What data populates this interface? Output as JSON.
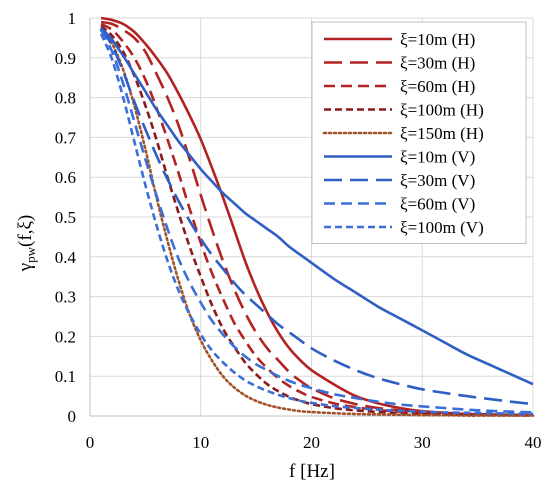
{
  "chart_data": {
    "type": "line",
    "xlabel": "f [Hz]",
    "ylabel": "γpw(f,ξ)",
    "ylabel_main": "γ",
    "ylabel_sub": "pw",
    "ylabel_rest": "(f,ξ)",
    "xlim": [
      0,
      40
    ],
    "ylim": [
      0,
      1
    ],
    "xticks": [
      0,
      10,
      20,
      30,
      40
    ],
    "yticks": [
      0,
      0.1,
      0.2,
      0.3,
      0.4,
      0.5,
      0.6,
      0.7,
      0.8,
      0.9,
      1
    ],
    "xtick_labels": [
      "0",
      "10",
      "20",
      "30",
      "40"
    ],
    "ytick_labels": [
      "0",
      "0.1",
      "0.2",
      "0.3",
      "0.4",
      "0.5",
      "0.6",
      "0.7",
      "0.8",
      "0.9",
      "1"
    ],
    "grid": "both",
    "legend_position": "top-right",
    "x": [
      1,
      2,
      3,
      4,
      5,
      6,
      7,
      8,
      9,
      10,
      11,
      12,
      13,
      14,
      15,
      16,
      17,
      18,
      19,
      20,
      22,
      24,
      26,
      28,
      30,
      32,
      34,
      36,
      38,
      40
    ],
    "series": [
      {
        "name": "ξ=10m (H)",
        "color": "#B22222",
        "dash": "solid",
        "values": [
          1.0,
          0.995,
          0.985,
          0.965,
          0.935,
          0.9,
          0.86,
          0.81,
          0.755,
          0.695,
          0.625,
          0.55,
          0.47,
          0.39,
          0.32,
          0.26,
          0.21,
          0.17,
          0.14,
          0.115,
          0.08,
          0.05,
          0.032,
          0.02,
          0.012,
          0.008,
          0.005,
          0.004,
          0.003,
          0.002
        ]
      },
      {
        "name": "ξ=30m (H)",
        "color": "#B22222",
        "dash": "long",
        "values": [
          0.99,
          0.985,
          0.97,
          0.95,
          0.915,
          0.86,
          0.8,
          0.73,
          0.645,
          0.555,
          0.47,
          0.39,
          0.32,
          0.26,
          0.21,
          0.17,
          0.14,
          0.11,
          0.088,
          0.07,
          0.045,
          0.03,
          0.02,
          0.014,
          0.01,
          0.007,
          0.005,
          0.004,
          0.003,
          0.002
        ]
      },
      {
        "name": "ξ=60m (H)",
        "color": "#B22222",
        "dash": "medium",
        "values": [
          0.985,
          0.97,
          0.94,
          0.9,
          0.845,
          0.775,
          0.695,
          0.61,
          0.52,
          0.435,
          0.36,
          0.295,
          0.235,
          0.19,
          0.15,
          0.12,
          0.095,
          0.075,
          0.06,
          0.048,
          0.032,
          0.022,
          0.015,
          0.011,
          0.008,
          0.006,
          0.004,
          0.003,
          0.002,
          0.002
        ]
      },
      {
        "name": "ξ=100m (H)",
        "color": "#8B1A1A",
        "dash": "short",
        "values": [
          0.98,
          0.955,
          0.915,
          0.855,
          0.78,
          0.695,
          0.6,
          0.51,
          0.425,
          0.35,
          0.28,
          0.22,
          0.175,
          0.135,
          0.105,
          0.08,
          0.062,
          0.048,
          0.038,
          0.03,
          0.02,
          0.014,
          0.01,
          0.007,
          0.005,
          0.004,
          0.003,
          0.002,
          0.002,
          0.001
        ]
      },
      {
        "name": "ξ=150m (H)",
        "color": "#A0522D",
        "dash": "dot",
        "values": [
          0.97,
          0.935,
          0.87,
          0.78,
          0.67,
          0.55,
          0.44,
          0.34,
          0.255,
          0.19,
          0.14,
          0.1,
          0.072,
          0.052,
          0.038,
          0.028,
          0.021,
          0.016,
          0.012,
          0.01,
          0.007,
          0.005,
          0.004,
          0.003,
          0.002,
          0.002,
          0.001,
          0.001,
          0.001,
          0.001
        ]
      },
      {
        "name": "ξ=10m (V)",
        "color": "#2E5FC4",
        "dash": "solid",
        "values": [
          0.975,
          0.945,
          0.905,
          0.86,
          0.815,
          0.77,
          0.73,
          0.69,
          0.655,
          0.62,
          0.59,
          0.56,
          0.535,
          0.51,
          0.49,
          0.47,
          0.45,
          0.425,
          0.405,
          0.385,
          0.345,
          0.31,
          0.275,
          0.245,
          0.215,
          0.185,
          0.155,
          0.13,
          0.105,
          0.08
        ]
      },
      {
        "name": "ξ=30m (V)",
        "color": "#2E5FC4",
        "dash": "long",
        "values": [
          0.975,
          0.93,
          0.865,
          0.79,
          0.72,
          0.655,
          0.595,
          0.54,
          0.49,
          0.445,
          0.405,
          0.37,
          0.335,
          0.305,
          0.28,
          0.255,
          0.23,
          0.21,
          0.19,
          0.17,
          0.14,
          0.115,
          0.095,
          0.08,
          0.067,
          0.058,
          0.05,
          0.043,
          0.036,
          0.03
        ]
      },
      {
        "name": "ξ=60m (V)",
        "color": "#3A6FD8",
        "dash": "medium",
        "values": [
          0.97,
          0.915,
          0.835,
          0.74,
          0.645,
          0.555,
          0.47,
          0.395,
          0.335,
          0.285,
          0.24,
          0.205,
          0.175,
          0.15,
          0.13,
          0.115,
          0.1,
          0.088,
          0.078,
          0.07,
          0.055,
          0.045,
          0.036,
          0.029,
          0.024,
          0.02,
          0.016,
          0.013,
          0.011,
          0.009
        ]
      },
      {
        "name": "ξ=100m (V)",
        "color": "#3A6FD8",
        "dash": "short",
        "values": [
          0.96,
          0.895,
          0.8,
          0.69,
          0.58,
          0.48,
          0.39,
          0.315,
          0.255,
          0.205,
          0.165,
          0.135,
          0.11,
          0.09,
          0.075,
          0.063,
          0.053,
          0.045,
          0.038,
          0.033,
          0.025,
          0.02,
          0.016,
          0.013,
          0.011,
          0.009,
          0.008,
          0.007,
          0.006,
          0.005
        ]
      }
    ]
  }
}
